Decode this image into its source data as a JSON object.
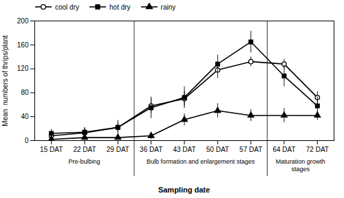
{
  "chart_data": {
    "type": "line",
    "categories": [
      "15 DAT",
      "22 DAT",
      "29 DAT",
      "36 DAT",
      "43 DAT",
      "50 DAT",
      "57 DAT",
      "64 DAT",
      "72 DAT"
    ],
    "series": [
      {
        "name": "cool dry",
        "color": "black",
        "marker": "circle-open",
        "values": [
          8,
          13,
          22,
          58,
          70,
          118,
          132,
          128,
          72
        ],
        "errors": [
          8,
          8,
          12,
          12,
          12,
          14,
          8,
          8,
          10
        ]
      },
      {
        "name": "hot dry",
        "color": "black",
        "marker": "square",
        "values": [
          12,
          14,
          22,
          55,
          72,
          128,
          165,
          108,
          58
        ],
        "errors": [
          7,
          8,
          8,
          18,
          18,
          15,
          18,
          18,
          15
        ]
      },
      {
        "name": "rainy",
        "color": "black",
        "marker": "triangle",
        "values": [
          2,
          5,
          5,
          8,
          35,
          50,
          42,
          42,
          42
        ],
        "errors": [
          2,
          4,
          4,
          6,
          10,
          12,
          10,
          12,
          8
        ]
      }
    ],
    "ylim": [
      0,
      200
    ],
    "yticks": [
      0,
      40,
      80,
      120,
      160,
      200
    ],
    "ylabel": "Mean  numbers of thrips/plant",
    "xlabel": "Sampling date",
    "annotations": [
      {
        "text": "Pre-bulbing",
        "from": "15 DAT",
        "to": "29 DAT"
      },
      {
        "text": "Bulb formation and enlargement stages",
        "from": "36 DAT",
        "to": "57 DAT"
      },
      {
        "text": "Maturation growth\nstages",
        "from": "64 DAT",
        "to": "72 DAT"
      }
    ],
    "legend": "upper left",
    "grid": false
  }
}
